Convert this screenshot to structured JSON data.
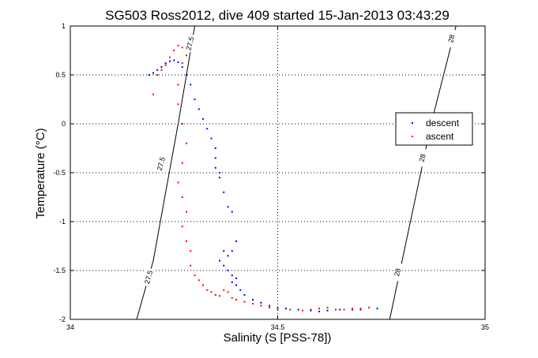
{
  "chart_data": {
    "type": "scatter",
    "title": "SG503 Ross2012, dive 409 started 15-Jan-2013 03:43:29",
    "xlabel": "Salinity (S [PSS-78])",
    "ylabel": "Temperature (°C)",
    "xlim": [
      34,
      35
    ],
    "ylim": [
      -2,
      1
    ],
    "xticks": [
      34,
      34.5,
      35
    ],
    "yticks": [
      -2,
      -1.5,
      -1,
      -0.5,
      0,
      0.5,
      1
    ],
    "xtick_labels": [
      "34",
      "34.5",
      "35"
    ],
    "ytick_labels": [
      "-2",
      "-1.5",
      "-1",
      "-0.5",
      "0",
      "0.5",
      "1"
    ],
    "grid": true,
    "legend_position": "right",
    "legend": [
      "descent",
      "ascent"
    ],
    "series": [
      {
        "name": "descent",
        "color": "#0000ff",
        "marker": "dot",
        "points": [
          [
            34.19,
            0.5
          ],
          [
            34.2,
            0.52
          ],
          [
            34.21,
            0.55
          ],
          [
            34.22,
            0.58
          ],
          [
            34.23,
            0.62
          ],
          [
            34.24,
            0.64
          ],
          [
            34.25,
            0.65
          ],
          [
            34.26,
            0.63
          ],
          [
            34.27,
            0.58
          ],
          [
            34.28,
            0.5
          ],
          [
            34.29,
            0.4
          ],
          [
            34.3,
            0.25
          ],
          [
            34.31,
            0.15
          ],
          [
            34.32,
            0.05
          ],
          [
            34.33,
            -0.05
          ],
          [
            34.34,
            -0.15
          ],
          [
            34.35,
            -0.25
          ],
          [
            34.35,
            -0.35
          ],
          [
            34.35,
            -0.45
          ],
          [
            34.36,
            -0.5
          ],
          [
            34.36,
            -0.55
          ],
          [
            34.37,
            -0.7
          ],
          [
            34.38,
            -0.85
          ],
          [
            34.39,
            -0.9
          ],
          [
            34.4,
            -1.2
          ],
          [
            34.39,
            -1.3
          ],
          [
            34.38,
            -1.35
          ],
          [
            34.37,
            -1.3
          ],
          [
            34.36,
            -1.4
          ],
          [
            34.37,
            -1.45
          ],
          [
            34.38,
            -1.5
          ],
          [
            34.39,
            -1.55
          ],
          [
            34.4,
            -1.58
          ],
          [
            34.39,
            -1.62
          ],
          [
            34.4,
            -1.65
          ],
          [
            34.41,
            -1.7
          ],
          [
            34.42,
            -1.75
          ],
          [
            34.44,
            -1.8
          ],
          [
            34.46,
            -1.83
          ],
          [
            34.48,
            -1.86
          ],
          [
            34.5,
            -1.88
          ],
          [
            34.52,
            -1.89
          ],
          [
            34.55,
            -1.9
          ],
          [
            34.58,
            -1.91
          ],
          [
            34.6,
            -1.92
          ],
          [
            34.62,
            -1.91
          ],
          [
            34.65,
            -1.9
          ],
          [
            34.68,
            -1.9
          ],
          [
            34.7,
            -1.9
          ],
          [
            34.74,
            -1.89
          ]
        ]
      },
      {
        "name": "ascent",
        "color": "#ff0000",
        "marker": "dot",
        "points": [
          [
            34.2,
            0.3
          ],
          [
            34.21,
            0.5
          ],
          [
            34.22,
            0.55
          ],
          [
            34.23,
            0.6
          ],
          [
            34.24,
            0.68
          ],
          [
            34.25,
            0.75
          ],
          [
            34.26,
            0.8
          ],
          [
            34.27,
            0.78
          ],
          [
            34.28,
            0.7
          ],
          [
            34.27,
            0.62
          ],
          [
            34.26,
            0.4
          ],
          [
            34.26,
            0.2
          ],
          [
            34.27,
            0.0
          ],
          [
            34.28,
            -0.2
          ],
          [
            34.27,
            -0.4
          ],
          [
            34.26,
            -0.6
          ],
          [
            34.27,
            -0.75
          ],
          [
            34.28,
            -0.9
          ],
          [
            34.27,
            -1.05
          ],
          [
            34.28,
            -1.2
          ],
          [
            34.29,
            -1.3
          ],
          [
            34.29,
            -1.45
          ],
          [
            34.3,
            -1.55
          ],
          [
            34.31,
            -1.6
          ],
          [
            34.32,
            -1.65
          ],
          [
            34.33,
            -1.7
          ],
          [
            34.34,
            -1.72
          ],
          [
            34.35,
            -1.75
          ],
          [
            34.36,
            -1.76
          ],
          [
            34.37,
            -1.7
          ],
          [
            34.38,
            -1.72
          ],
          [
            34.39,
            -1.78
          ],
          [
            34.4,
            -1.8
          ],
          [
            34.42,
            -1.82
          ],
          [
            34.44,
            -1.84
          ],
          [
            34.46,
            -1.86
          ],
          [
            34.48,
            -1.88
          ],
          [
            34.5,
            -1.9
          ],
          [
            34.53,
            -1.9
          ],
          [
            34.56,
            -1.91
          ],
          [
            34.58,
            -1.9
          ],
          [
            34.6,
            -1.89
          ],
          [
            34.62,
            -1.88
          ],
          [
            34.64,
            -1.9
          ],
          [
            34.66,
            -1.9
          ],
          [
            34.68,
            -1.89
          ],
          [
            34.7,
            -1.89
          ],
          [
            34.72,
            -1.88
          ]
        ]
      }
    ],
    "contours": [
      {
        "label": "27.5",
        "points": [
          [
            34.16,
            -2
          ],
          [
            34.2,
            -1.4
          ],
          [
            34.23,
            -0.7
          ],
          [
            34.26,
            0.0
          ],
          [
            34.28,
            0.5
          ],
          [
            34.3,
            1.0
          ]
        ],
        "labels_at": [
          [
            34.19,
            -1.57
          ],
          [
            34.22,
            -0.41
          ],
          [
            34.29,
            0.82
          ]
        ]
      },
      {
        "label": "28",
        "points": [
          [
            34.77,
            -2
          ],
          [
            34.8,
            -1.4
          ],
          [
            34.84,
            -0.6
          ],
          [
            34.87,
            0.0
          ],
          [
            34.9,
            0.5
          ],
          [
            34.93,
            1.0
          ]
        ],
        "labels_at": [
          [
            34.79,
            -1.52
          ],
          [
            34.85,
            -0.35
          ],
          [
            34.92,
            0.87
          ]
        ]
      }
    ]
  }
}
